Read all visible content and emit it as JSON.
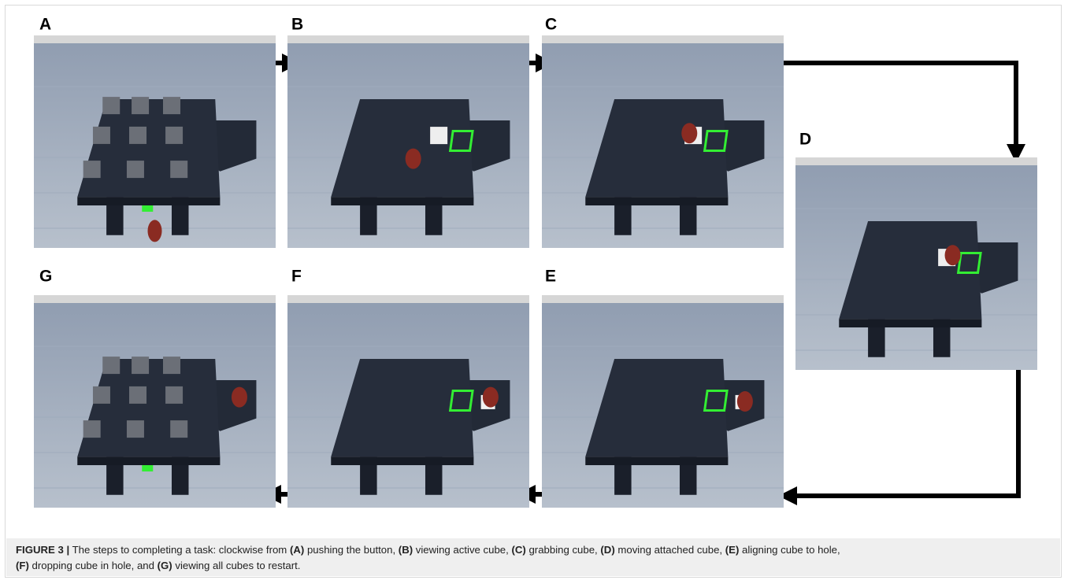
{
  "panels": [
    {
      "label": "A"
    },
    {
      "label": "B"
    },
    {
      "label": "C"
    },
    {
      "label": "D"
    },
    {
      "label": "E"
    },
    {
      "label": "F"
    },
    {
      "label": "G"
    }
  ],
  "caption": {
    "figure_label": "FIGURE 3 |",
    "intro": "The steps to completing a task: clockwise from",
    "items": [
      {
        "ref": "(A)",
        "text": "pushing the button,"
      },
      {
        "ref": "(B)",
        "text": "viewing active cube,"
      },
      {
        "ref": "(C)",
        "text": "grabbing cube,"
      },
      {
        "ref": "(D)",
        "text": "moving attached cube,"
      },
      {
        "ref": "(E)",
        "text": "aligning cube to hole,"
      },
      {
        "ref": "(F)",
        "text": "dropping cube in hole, and"
      },
      {
        "ref": "(G)",
        "text": "viewing all cubes to restart."
      }
    ]
  }
}
